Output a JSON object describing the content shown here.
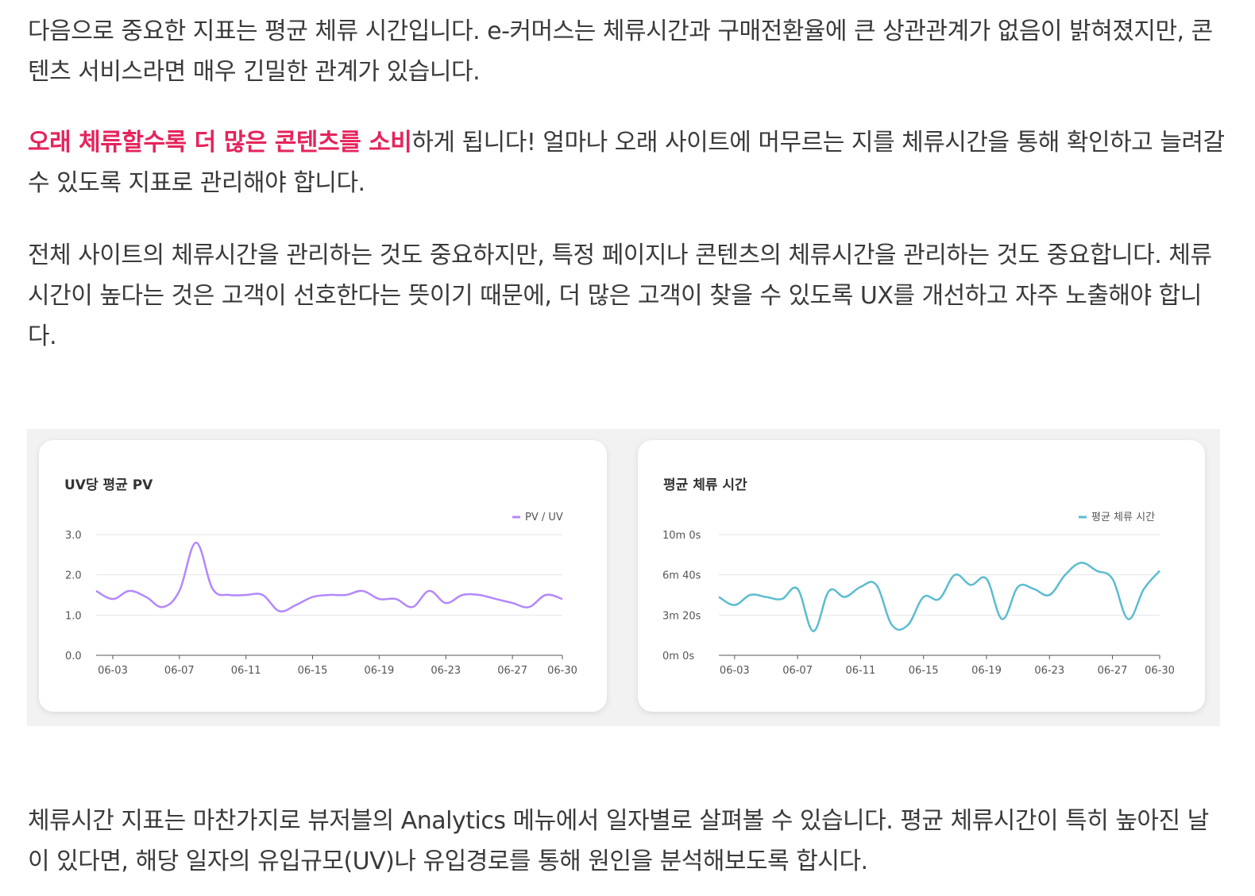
{
  "paragraphs": {
    "p1": "다음으로 중요한 지표는 평균 체류 시간입니다. e-커머스는 체류시간과 구매전환율에 큰 상관관계가 없음이 밝혀졌지만, 콘텐츠 서비스라면 매우 긴밀한 관계가 있습니다.",
    "p2_emphasis": "오래 체류할수록 더 많은 콘텐츠를 소비",
    "p2_rest": "하게 됩니다! 얼마나 오래 사이트에 머무르는 지를 체류시간을 통해 확인하고 늘려갈 수 있도록 지표로 관리해야 합니다.",
    "p3": "전체 사이트의 체류시간을 관리하는 것도 중요하지만, 특정 페이지나 콘텐츠의 체류시간을 관리하는 것도 중요합니다. 체류시간이 높다는 것은 고객이 선호한다는 뜻이기 때문에, 더 많은 고객이 찾을 수 있도록 UX를 개선하고 자주 노출해야 합니다.",
    "p4": "체류시간 지표는 마찬가지로 뷰저블의 Analytics 메뉴에서 일자별로 살펴볼 수 있습니다. 평균 체류시간이 특히 높아진 날이 있다면, 해당 일자의 유입규모(UV)나 유입경로를 통해 원인을 분석해보도록 합시다."
  },
  "colors": {
    "emphasis": "#e5245b",
    "pv_line": "#b388ff",
    "dwell_line": "#5bbcd0"
  },
  "chart_data": [
    {
      "type": "line",
      "title": "UV당 평균 PV",
      "legend": "top-right",
      "grid": true,
      "ylim": [
        0,
        3
      ],
      "y_ticks": [
        "0.0",
        "1.0",
        "2.0",
        "3.0"
      ],
      "x_ticks": [
        "06-03",
        "06-07",
        "06-11",
        "06-15",
        "06-19",
        "06-23",
        "06-27",
        "06-30"
      ],
      "x": [
        "06-02",
        "06-03",
        "06-04",
        "06-05",
        "06-06",
        "06-07",
        "06-08",
        "06-09",
        "06-10",
        "06-11",
        "06-12",
        "06-13",
        "06-14",
        "06-15",
        "06-16",
        "06-17",
        "06-18",
        "06-19",
        "06-20",
        "06-21",
        "06-22",
        "06-23",
        "06-24",
        "06-25",
        "06-26",
        "06-27",
        "06-28",
        "06-29",
        "06-30"
      ],
      "series": [
        {
          "name": "PV / UV",
          "color": "#b388ff",
          "values": [
            1.6,
            1.4,
            1.6,
            1.45,
            1.2,
            1.6,
            2.8,
            1.65,
            1.5,
            1.5,
            1.5,
            1.1,
            1.25,
            1.45,
            1.5,
            1.5,
            1.6,
            1.4,
            1.4,
            1.2,
            1.6,
            1.3,
            1.5,
            1.5,
            1.4,
            1.3,
            1.2,
            1.5,
            1.4
          ]
        }
      ]
    },
    {
      "type": "line",
      "title": "평균 체류 시간",
      "legend": "top-right",
      "grid": true,
      "ylim": [
        0,
        600
      ],
      "y_ticks": [
        "0m 0s",
        "3m 20s",
        "6m 40s",
        "10m 0s"
      ],
      "x_ticks": [
        "06-03",
        "06-07",
        "06-11",
        "06-15",
        "06-19",
        "06-23",
        "06-27",
        "06-30"
      ],
      "x": [
        "06-02",
        "06-03",
        "06-04",
        "06-05",
        "06-06",
        "06-07",
        "06-08",
        "06-09",
        "06-10",
        "06-11",
        "06-12",
        "06-13",
        "06-14",
        "06-15",
        "06-16",
        "06-17",
        "06-18",
        "06-19",
        "06-20",
        "06-21",
        "06-22",
        "06-23",
        "06-24",
        "06-25",
        "06-26",
        "06-27",
        "06-28",
        "06-29",
        "06-30"
      ],
      "series": [
        {
          "name": "평균 체류 시간",
          "color": "#5bbcd0",
          "values": [
            290,
            250,
            300,
            290,
            280,
            330,
            120,
            320,
            290,
            340,
            350,
            150,
            150,
            290,
            280,
            400,
            350,
            380,
            180,
            340,
            330,
            300,
            400,
            460,
            420,
            380,
            180,
            330,
            420
          ]
        }
      ]
    }
  ]
}
